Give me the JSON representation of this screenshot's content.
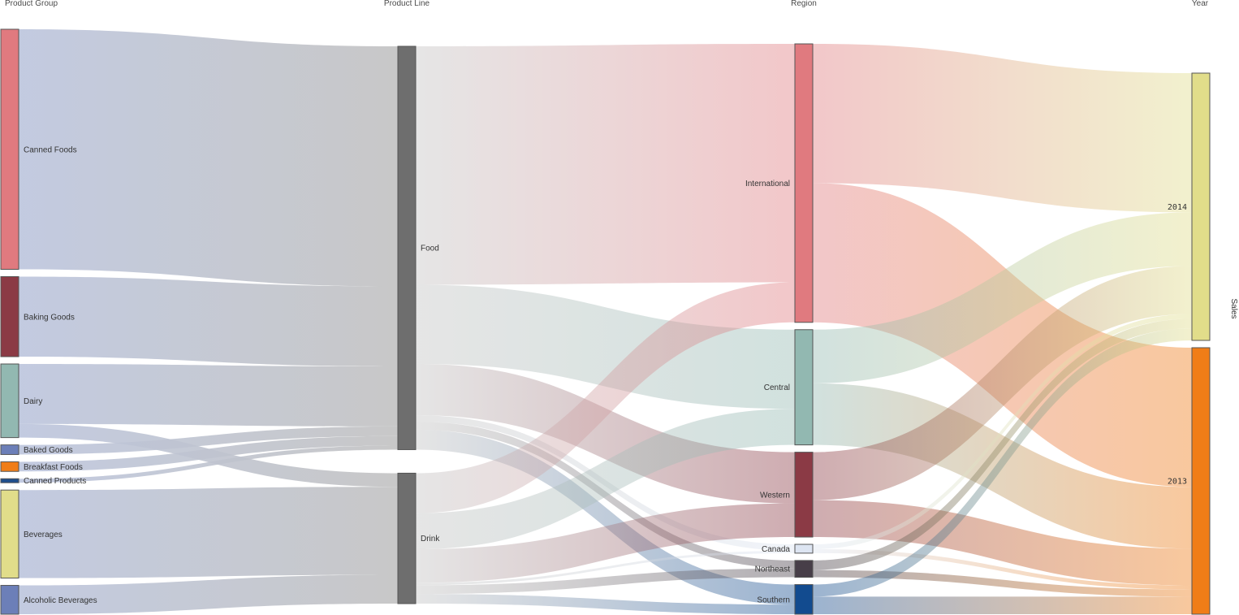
{
  "chart_data": {
    "type": "sankey",
    "measure_label": "Sales",
    "columns": [
      {
        "key": "group",
        "header": "Product Group"
      },
      {
        "key": "line",
        "header": "Product Line"
      },
      {
        "key": "region",
        "header": "Region"
      },
      {
        "key": "year",
        "header": "Year"
      }
    ],
    "nodes": [
      {
        "id": "canned_foods",
        "label": "Canned Foods",
        "column": "group",
        "color": "#e07a7f",
        "value": 300
      },
      {
        "id": "baking_goods",
        "label": "Baking Goods",
        "column": "group",
        "color": "#8b3a45",
        "value": 100
      },
      {
        "id": "dairy",
        "label": "Dairy",
        "column": "group",
        "color": "#92b8b1",
        "value": 92
      },
      {
        "id": "baked_goods",
        "label": "Baked Goods",
        "column": "group",
        "color": "#6c7fb8",
        "value": 12
      },
      {
        "id": "breakfast_foods",
        "label": "Breakfast Foods",
        "column": "group",
        "color": "#f07d17",
        "value": 12
      },
      {
        "id": "canned_products",
        "label": "Canned Products",
        "column": "group",
        "color": "#1f4e8c",
        "value": 5
      },
      {
        "id": "beverages",
        "label": "Beverages",
        "column": "group",
        "color": "#e1dd8a",
        "value": 110
      },
      {
        "id": "alcoholic_beverages",
        "label": "Alcoholic Beverages",
        "column": "group",
        "color": "#6c7fb8",
        "value": 36
      },
      {
        "id": "food",
        "label": "Food",
        "column": "line",
        "color": "#6e6e6e",
        "value": 504
      },
      {
        "id": "drink",
        "label": "Drink",
        "column": "line",
        "color": "#6e6e6e",
        "value": 163
      },
      {
        "id": "international",
        "label": "International",
        "column": "region",
        "color": "#e07a7f",
        "value": 348
      },
      {
        "id": "central",
        "label": "Central",
        "column": "region",
        "color": "#92b8b1",
        "value": 144
      },
      {
        "id": "western",
        "label": "Western",
        "column": "region",
        "color": "#8b3a45",
        "value": 106
      },
      {
        "id": "canada",
        "label": "Canada",
        "column": "region",
        "color": "#dde5f2",
        "value": 11
      },
      {
        "id": "northeast",
        "label": "Northeast",
        "column": "region",
        "color": "#473e48",
        "value": 21
      },
      {
        "id": "southern",
        "label": "Southern",
        "column": "region",
        "color": "#124b8f",
        "value": 37
      },
      {
        "id": "y2014",
        "label": "2014",
        "column": "year",
        "color": "#e1dd8a",
        "value": 334
      },
      {
        "id": "y2013",
        "label": "2013",
        "column": "year",
        "color": "#f07d17",
        "value": 333
      }
    ],
    "links": [
      {
        "source": "canned_foods",
        "target": "food",
        "value": 300
      },
      {
        "source": "baking_goods",
        "target": "food",
        "value": 100
      },
      {
        "source": "dairy",
        "target": "food",
        "value": 75
      },
      {
        "source": "dairy",
        "target": "drink",
        "value": 17
      },
      {
        "source": "baked_goods",
        "target": "food",
        "value": 12
      },
      {
        "source": "breakfast_foods",
        "target": "food",
        "value": 12
      },
      {
        "source": "canned_products",
        "target": "food",
        "value": 5
      },
      {
        "source": "beverages",
        "target": "drink",
        "value": 110
      },
      {
        "source": "alcoholic_beverages",
        "target": "drink",
        "value": 36
      },
      {
        "source": "food",
        "target": "international",
        "value": 298
      },
      {
        "source": "food",
        "target": "central",
        "value": 99
      },
      {
        "source": "food",
        "target": "western",
        "value": 64
      },
      {
        "source": "food",
        "target": "canada",
        "value": 8
      },
      {
        "source": "food",
        "target": "northeast",
        "value": 10
      },
      {
        "source": "food",
        "target": "southern",
        "value": 25
      },
      {
        "source": "drink",
        "target": "international",
        "value": 50
      },
      {
        "source": "drink",
        "target": "central",
        "value": 45
      },
      {
        "source": "drink",
        "target": "western",
        "value": 42
      },
      {
        "source": "drink",
        "target": "canada",
        "value": 3
      },
      {
        "source": "drink",
        "target": "northeast",
        "value": 11
      },
      {
        "source": "drink",
        "target": "southern",
        "value": 12
      },
      {
        "source": "international",
        "target": "y2014",
        "value": 174
      },
      {
        "source": "international",
        "target": "y2013",
        "value": 174
      },
      {
        "source": "central",
        "target": "y2014",
        "value": 67
      },
      {
        "source": "central",
        "target": "y2013",
        "value": 77
      },
      {
        "source": "western",
        "target": "y2014",
        "value": 60
      },
      {
        "source": "western",
        "target": "y2013",
        "value": 46
      },
      {
        "source": "canada",
        "target": "y2014",
        "value": 6
      },
      {
        "source": "canada",
        "target": "y2013",
        "value": 5
      },
      {
        "source": "northeast",
        "target": "y2014",
        "value": 12
      },
      {
        "source": "northeast",
        "target": "y2013",
        "value": 9
      },
      {
        "source": "southern",
        "target": "y2014",
        "value": 15
      },
      {
        "source": "southern",
        "target": "y2013",
        "value": 22
      }
    ]
  }
}
